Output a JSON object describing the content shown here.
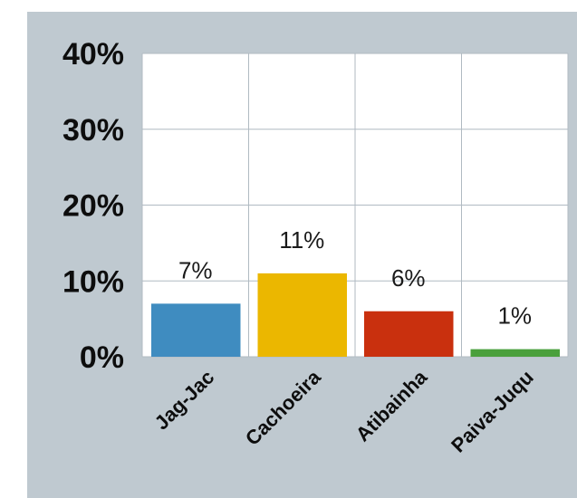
{
  "chart_data": {
    "type": "bar",
    "categories": [
      "Jag-Jac",
      "Cachoeira",
      "Atibainha",
      "Paiva-Juqu"
    ],
    "values": [
      7,
      11,
      6,
      1
    ],
    "data_labels": [
      "7%",
      "11%",
      "6%",
      "1%"
    ],
    "colors": [
      "#3f8cc0",
      "#ebb700",
      "#c9300e",
      "#4aa03c"
    ],
    "ylim": [
      0,
      40
    ],
    "yticks": [
      0,
      10,
      20,
      30,
      40
    ],
    "ytick_labels": [
      "0%",
      "10%",
      "20%",
      "30%",
      "40%"
    ],
    "grid": true,
    "title": "",
    "xlabel": "",
    "ylabel": ""
  }
}
